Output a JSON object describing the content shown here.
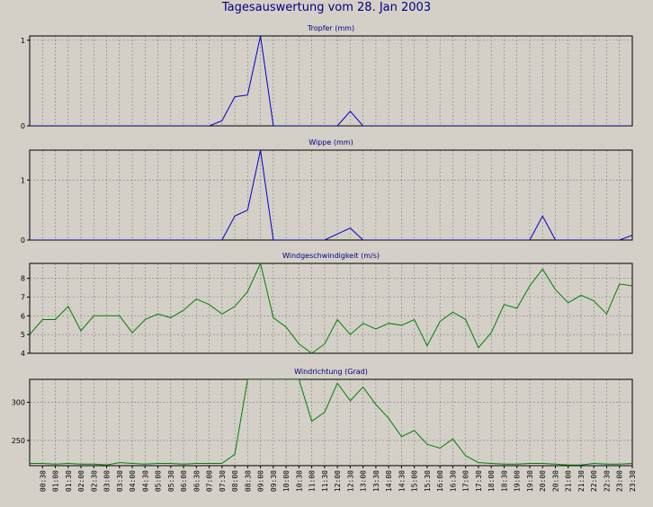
{
  "window": {
    "title": "Tagesauswertung vom 28. Jan 2003"
  },
  "x_labels": [
    "00:30",
    "01:00",
    "01:30",
    "02:00",
    "02:30",
    "03:00",
    "03:30",
    "04:00",
    "04:30",
    "05:00",
    "05:30",
    "06:00",
    "06:30",
    "07:00",
    "07:30",
    "08:00",
    "08:30",
    "09:00",
    "09:30",
    "10:00",
    "10:30",
    "11:00",
    "11:30",
    "12:00",
    "12:30",
    "13:00",
    "13:30",
    "14:00",
    "14:30",
    "15:00",
    "15:30",
    "16:00",
    "16:30",
    "17:00",
    "17:30",
    "18:00",
    "18:30",
    "19:00",
    "19:30",
    "20:00",
    "20:30",
    "21:00",
    "21:30",
    "22:00",
    "22:30",
    "23:00",
    "23:30"
  ],
  "chart_data": [
    {
      "type": "line",
      "title": "Tropfer (mm)",
      "color": "#0000c8",
      "ylim": [
        0,
        1.05
      ],
      "yticks": [
        0,
        1
      ],
      "ytick_labels": [
        "0",
        "1"
      ],
      "x": [
        "00:00",
        "00:30",
        "01:00",
        "01:30",
        "02:00",
        "02:30",
        "03:00",
        "03:30",
        "04:00",
        "04:30",
        "05:00",
        "05:30",
        "06:00",
        "06:30",
        "07:00",
        "07:30",
        "08:00",
        "08:30",
        "09:00",
        "09:30",
        "10:00",
        "10:30",
        "11:00",
        "11:30",
        "12:00",
        "12:30",
        "13:00",
        "13:30",
        "14:00",
        "14:30",
        "15:00",
        "15:30",
        "16:00",
        "16:30",
        "17:00",
        "17:30",
        "18:00",
        "18:30",
        "19:00",
        "19:30",
        "20:00",
        "20:30",
        "21:00",
        "21:30",
        "22:00",
        "22:30",
        "23:00",
        "23:30"
      ],
      "series": [
        {
          "values": [
            0,
            0,
            0,
            0,
            0,
            0,
            0,
            0,
            0,
            0,
            0,
            0,
            0,
            0,
            0,
            0.06,
            0.34,
            0.36,
            1.05,
            0,
            0,
            0,
            0,
            0,
            0,
            0.17,
            0,
            0,
            0,
            0,
            0,
            0,
            0,
            0,
            0,
            0,
            0,
            0,
            0,
            0,
            0,
            0,
            0,
            0,
            0,
            0,
            0,
            0
          ]
        }
      ]
    },
    {
      "type": "line",
      "title": "Wippe (mm)",
      "color": "#0000c8",
      "ylim": [
        0,
        1.5
      ],
      "yticks": [
        0,
        1
      ],
      "ytick_labels": [
        "0",
        "1"
      ],
      "x": [
        "00:00",
        "00:30",
        "01:00",
        "01:30",
        "02:00",
        "02:30",
        "03:00",
        "03:30",
        "04:00",
        "04:30",
        "05:00",
        "05:30",
        "06:00",
        "06:30",
        "07:00",
        "07:30",
        "08:00",
        "08:30",
        "09:00",
        "09:30",
        "10:00",
        "10:30",
        "11:00",
        "11:30",
        "12:00",
        "12:30",
        "13:00",
        "13:30",
        "14:00",
        "14:30",
        "15:00",
        "15:30",
        "16:00",
        "16:30",
        "17:00",
        "17:30",
        "18:00",
        "18:30",
        "19:00",
        "19:30",
        "20:00",
        "20:30",
        "21:00",
        "21:30",
        "22:00",
        "22:30",
        "23:00",
        "23:30"
      ],
      "series": [
        {
          "values": [
            0,
            0,
            0,
            0,
            0,
            0,
            0,
            0,
            0,
            0,
            0,
            0,
            0,
            0,
            0,
            0,
            0.4,
            0.5,
            1.5,
            0,
            0,
            0,
            0,
            0,
            0.1,
            0.2,
            0,
            0,
            0,
            0,
            0,
            0,
            0,
            0,
            0,
            0,
            0,
            0,
            0,
            0,
            0.4,
            0,
            0,
            0,
            0,
            0,
            0,
            0.08
          ]
        }
      ]
    },
    {
      "type": "line",
      "title": "Windgeschwindigkeit (m/s)",
      "color": "#008000",
      "ylim": [
        4,
        8.8
      ],
      "yticks": [
        4,
        5,
        6,
        7,
        8
      ],
      "ytick_labels": [
        "4",
        "5",
        "6",
        "7",
        "8"
      ],
      "x": [
        "00:00",
        "00:30",
        "01:00",
        "01:30",
        "02:00",
        "02:30",
        "03:00",
        "03:30",
        "04:00",
        "04:30",
        "05:00",
        "05:30",
        "06:00",
        "06:30",
        "07:00",
        "07:30",
        "08:00",
        "08:30",
        "09:00",
        "09:30",
        "10:00",
        "10:30",
        "11:00",
        "11:30",
        "12:00",
        "12:30",
        "13:00",
        "13:30",
        "14:00",
        "14:30",
        "15:00",
        "15:30",
        "16:00",
        "16:30",
        "17:00",
        "17:30",
        "18:00",
        "18:30",
        "19:00",
        "19:30",
        "20:00",
        "20:30",
        "21:00",
        "21:30",
        "22:00",
        "22:30",
        "23:00",
        "23:30"
      ],
      "series": [
        {
          "values": [
            5.0,
            5.8,
            5.8,
            6.5,
            5.2,
            6.0,
            6.0,
            6.0,
            5.1,
            5.8,
            6.1,
            5.9,
            6.3,
            6.9,
            6.6,
            6.1,
            6.5,
            7.3,
            8.8,
            5.9,
            5.4,
            4.5,
            4.0,
            4.5,
            5.8,
            5.0,
            5.6,
            5.3,
            5.6,
            5.5,
            5.8,
            4.4,
            5.7,
            6.2,
            5.8,
            4.3,
            5.1,
            6.6,
            6.4,
            7.6,
            8.5,
            7.4,
            6.7,
            7.1,
            6.8,
            6.1,
            7.7,
            7.6
          ]
        }
      ]
    },
    {
      "type": "line",
      "title": "Windrichtung (Grad)",
      "color": "#008000",
      "ylim": [
        217,
        330
      ],
      "yticks": [
        250,
        300
      ],
      "ytick_labels": [
        "250",
        "300"
      ],
      "x": [
        "00:00",
        "00:30",
        "01:00",
        "01:30",
        "02:00",
        "02:30",
        "03:00",
        "03:30",
        "04:00",
        "04:30",
        "05:00",
        "05:30",
        "06:00",
        "06:30",
        "07:00",
        "07:30",
        "08:00",
        "08:30",
        "09:00",
        "09:30",
        "10:00",
        "10:30",
        "11:00",
        "11:30",
        "12:00",
        "12:30",
        "13:00",
        "13:30",
        "14:00",
        "14:30",
        "15:00",
        "15:30",
        "16:00",
        "16:30",
        "17:00",
        "17:30",
        "18:00",
        "18:30",
        "19:00",
        "19:30",
        "20:00",
        "20:30",
        "21:00",
        "21:30",
        "22:00",
        "22:30",
        "23:00",
        "23:30"
      ],
      "series": [
        {
          "values": [
            220,
            220,
            219,
            220,
            219,
            219,
            218,
            221,
            220,
            219,
            220,
            220,
            219,
            220,
            220,
            220,
            232,
            330,
            330,
            330,
            330,
            330,
            275,
            287,
            325,
            302,
            320,
            297,
            279,
            255,
            263,
            245,
            240,
            252,
            230,
            221,
            220,
            219,
            219,
            220,
            220,
            219,
            218,
            218,
            220,
            219,
            219,
            220
          ]
        }
      ]
    }
  ]
}
